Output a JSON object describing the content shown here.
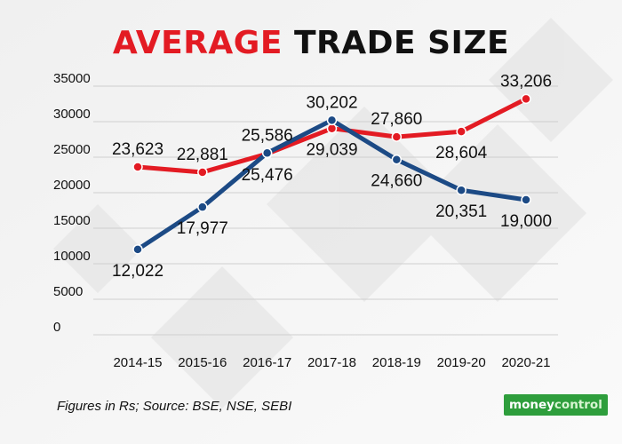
{
  "title": {
    "part1": "AVERAGE",
    "part2": "TRADE SIZE"
  },
  "footnote": "Figures in Rs;  Source: BSE, NSE, SEBI",
  "logo": {
    "part1": "money",
    "part2": "control"
  },
  "colors": {
    "red_series": "#e31b23",
    "blue_series": "#1c4a85",
    "grid": "#cfcfcf",
    "text": "#111111"
  },
  "chart_data": {
    "type": "line",
    "title": "AVERAGE TRADE SIZE",
    "xlabel": "",
    "ylabel": "",
    "categories": [
      "2014-15",
      "2015-16",
      "2016-17",
      "2017-18",
      "2018-19",
      "2019-20",
      "2020-21"
    ],
    "yticks": [
      "35000",
      "30000",
      "25000",
      "20000",
      "15000",
      "10000",
      "5000",
      "0"
    ],
    "ylim": [
      0,
      35000
    ],
    "grid": true,
    "series": [
      {
        "name": "red",
        "color": "#e31b23",
        "values": [
          23623,
          22881,
          25476,
          29039,
          27860,
          28604,
          33206
        ],
        "labels": [
          "23,623",
          "22,881",
          "25,476",
          "29,039",
          "27,860",
          "28,604",
          "33,206"
        ],
        "label_pos": [
          "above",
          "above",
          "below",
          "below",
          "above",
          "below",
          "above"
        ]
      },
      {
        "name": "blue",
        "color": "#1c4a85",
        "values": [
          12022,
          17977,
          25586,
          30202,
          24660,
          20351,
          19000
        ],
        "labels": [
          "12,022",
          "17,977",
          "25,586",
          "30,202",
          "24,660",
          "20,351",
          "19,000"
        ],
        "label_pos": [
          "below",
          "below",
          "above",
          "above",
          "below",
          "below",
          "below"
        ]
      }
    ]
  }
}
